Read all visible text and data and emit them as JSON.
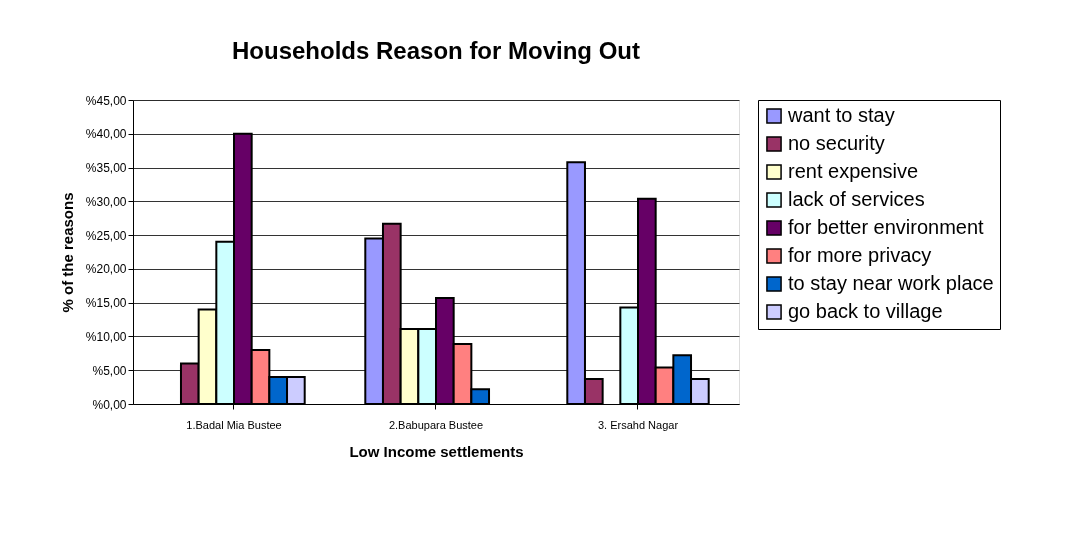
{
  "chart_data": {
    "type": "bar",
    "title": "Households Reason for Moving Out",
    "xlabel": "Low Income settlements",
    "ylabel": "% of the reasons",
    "categories": [
      "1.Badal Mia Bustee",
      "2.Babupara Bustee",
      "3. Ersahd Nagar"
    ],
    "series": [
      {
        "name": "want to stay",
        "color": "#9999ff",
        "values": [
          null,
          24.5,
          35.8
        ]
      },
      {
        "name": "no security",
        "color": "#993366",
        "values": [
          6,
          26.7,
          3.7
        ]
      },
      {
        "name": "rent expensive",
        "color": "#ffffcc",
        "values": [
          14,
          11.1,
          null
        ]
      },
      {
        "name": "lack of services",
        "color": "#ccffff",
        "values": [
          24,
          11.1,
          14.3
        ]
      },
      {
        "name": "for better environment",
        "color": "#660066",
        "values": [
          40,
          15.7,
          30.4
        ]
      },
      {
        "name": "for more privacy",
        "color": "#ff8080",
        "values": [
          8,
          8.9,
          5.4
        ]
      },
      {
        "name": "to stay near work place",
        "color": "#0066cc",
        "values": [
          4,
          2.2,
          7.2
        ]
      },
      {
        "name": "go back to village",
        "color": "#ccccff",
        "values": [
          4,
          null,
          3.7
        ]
      }
    ],
    "ylim": [
      0,
      45
    ],
    "yticks": [
      {
        "value": 0,
        "label": "%0,00"
      },
      {
        "value": 5,
        "label": "%5,00"
      },
      {
        "value": 10,
        "label": "%10,00"
      },
      {
        "value": 15,
        "label": "%15,00"
      },
      {
        "value": 20,
        "label": "%20,00"
      },
      {
        "value": 25,
        "label": "%25,00"
      },
      {
        "value": 30,
        "label": "%30,00"
      },
      {
        "value": 35,
        "label": "%35,00"
      },
      {
        "value": 40,
        "label": "%40,00"
      },
      {
        "value": 45,
        "label": "%45,00"
      }
    ],
    "grid": "y",
    "legend": "right"
  }
}
